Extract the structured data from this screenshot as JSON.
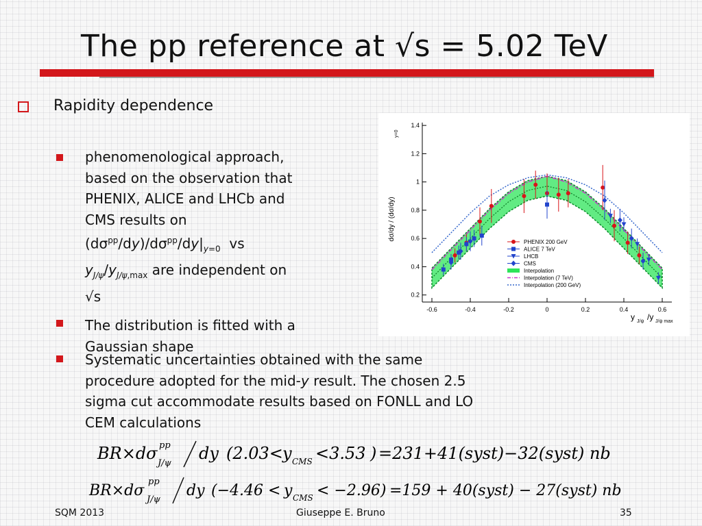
{
  "slide": {
    "title": "The pp reference at √s = 5.02 TeV",
    "bullet1": "Rapidity dependence",
    "sub1": {
      "line1": "phenomenological approach,",
      "line2": "based on the observation that",
      "line3": "PHENIX, ALICE and LHCb and",
      "line4": "CMS results on",
      "line5a": "(dσ",
      "line5b": "pp",
      "line5c": "/d",
      "line5d": "y",
      "line5e": ")/dσ",
      "line5f": "pp",
      "line5g": "/d",
      "line5h": "y",
      "line5i": "|",
      "line5j": "y",
      "line5k": "=0",
      "line5l": "  vs",
      "line6a": "y",
      "line6b": "J/ψ",
      "line6c": "/",
      "line6d": "y",
      "line6e": "J/ψ",
      "line6f": ",max",
      "line6g": " are independent on",
      "line7": "√s"
    },
    "sub2": {
      "line1": "The distribution is fitted with a",
      "line2": "Gaussian shape"
    },
    "sub3": {
      "line1": "Systematic uncertainties obtained with the same",
      "line2a": "procedure adopted for the mid-",
      "line2b": "y",
      "line2c": " result. The chosen 2.5",
      "line3": "sigma cut accommodate results based on FONLL and LO",
      "line4": "CEM calculations"
    },
    "eq1": "BR×dσ J/ψ pp /dy (2.03<y CMS <3.53) =231+41(syst)−32(syst) nb",
    "eq2": "BR×dσ J/ψ pp /dy (−4.46 < y CMS < −2.96) =159 + 40(syst) − 27(syst) nb",
    "eqs": {
      "e1": [
        "BR×dσ",
        "pp",
        "J/ψ",
        "dy",
        "(2.03<",
        "y",
        "CMS",
        "<3.53",
        ")",
        "=231+41(syst)−32(syst) nb"
      ],
      "e2": [
        "BR×dσ",
        "pp",
        "J/ψ",
        "dy",
        "(−4.46 <",
        "y",
        "CMS",
        "< −2.96)",
        "=159 + 40(syst) − 27(syst) nb"
      ]
    },
    "footer": {
      "left": "SQM 2013",
      "center": "Giuseppe E. Bruno",
      "right": "35"
    }
  },
  "colors": {
    "accent": "#d3171b",
    "phenix": "#d8141a",
    "alice": "#2244cc",
    "lhcb": "#2244cc",
    "cms": "#2244cc",
    "band": "#2ee45a",
    "interp": "#0a7a22",
    "interp7": "#cc33cc",
    "interp200": "#3366cc"
  },
  "chart_data": {
    "type": "scatter",
    "ylabel": "dσ/dy / (dσ/dy)",
    "ylabel_sub": "y=0",
    "xlabel_parts": [
      "y",
      "J/ψ",
      "/y",
      "J/ψ max"
    ],
    "xlim": [
      -0.65,
      0.65
    ],
    "ylim": [
      0.15,
      1.42
    ],
    "xticks": [
      -0.6,
      -0.4,
      -0.2,
      0,
      0.2,
      0.4,
      0.6
    ],
    "xticklabels": [
      "-0.6",
      "-0.4",
      "-0.2",
      "0",
      "0.2",
      "0.4",
      "0.6"
    ],
    "yticks": [
      0.2,
      0.4,
      0.6,
      0.8,
      1.0,
      1.2,
      1.4
    ],
    "yticklabels": [
      "0.2",
      "0.4",
      "0.6",
      "0.8",
      "1",
      "1.2",
      "1.4"
    ],
    "legend_position": "bottom-right",
    "series": [
      {
        "name": "PHENIX 200 GeV",
        "marker": "circle",
        "color": "#d8141a",
        "x": [
          -0.48,
          -0.42,
          -0.35,
          -0.29,
          -0.12,
          -0.06,
          0.0,
          0.06,
          0.11,
          0.29,
          0.35,
          0.42,
          0.48
        ],
        "y": [
          0.48,
          0.57,
          0.72,
          0.83,
          0.9,
          0.98,
          0.92,
          0.91,
          0.92,
          0.96,
          0.69,
          0.57,
          0.48
        ],
        "err": [
          0.05,
          0.06,
          0.1,
          0.12,
          0.12,
          0.1,
          0.14,
          0.12,
          0.1,
          0.16,
          0.11,
          0.08,
          0.06
        ]
      },
      {
        "name": "ALICE 7 TeV",
        "marker": "square",
        "color": "#2244cc",
        "x": [
          -0.54,
          -0.5,
          -0.46,
          -0.42,
          -0.38,
          -0.34,
          0.0
        ],
        "y": [
          0.38,
          0.45,
          0.5,
          0.56,
          0.6,
          0.62,
          0.84
        ],
        "err": [
          0.04,
          0.04,
          0.05,
          0.05,
          0.06,
          0.07,
          0.1
        ]
      },
      {
        "name": "LHCB",
        "marker": "triangle-down",
        "color": "#2244cc",
        "x": [
          0.33,
          0.4,
          0.47,
          0.53,
          0.58
        ],
        "y": [
          0.76,
          0.7,
          0.56,
          0.45,
          0.32
        ],
        "err": [
          0.05,
          0.05,
          0.04,
          0.04,
          0.04
        ]
      },
      {
        "name": "CMS",
        "marker": "diamond",
        "color": "#2244cc",
        "x": [
          -0.5,
          -0.45,
          -0.4,
          0.3,
          0.38,
          0.44,
          0.5
        ],
        "y": [
          0.43,
          0.51,
          0.58,
          0.87,
          0.73,
          0.6,
          0.44
        ],
        "err": [
          0.05,
          0.06,
          0.07,
          0.14,
          0.08,
          0.07,
          0.06
        ]
      },
      {
        "name": "Interpolation",
        "type": "band",
        "color": "#2ee45a",
        "x": [
          -0.6,
          -0.5,
          -0.4,
          -0.3,
          -0.2,
          -0.1,
          0.0,
          0.1,
          0.2,
          0.3,
          0.4,
          0.5,
          0.6
        ],
        "y": [
          0.32,
          0.46,
          0.6,
          0.74,
          0.86,
          0.94,
          0.97,
          0.94,
          0.86,
          0.74,
          0.6,
          0.46,
          0.32
        ],
        "band_half_width": 0.07
      },
      {
        "name": "Interpolation (7 TeV)",
        "type": "line",
        "style": "dash-dot",
        "color": "#cc33cc",
        "x": [
          -0.6,
          -0.5,
          -0.4,
          -0.3,
          -0.2,
          -0.1,
          0.0,
          0.1,
          0.2,
          0.3,
          0.4,
          0.5,
          0.6
        ],
        "y": [
          0.38,
          0.52,
          0.66,
          0.8,
          0.92,
          1.0,
          1.04,
          1.0,
          0.92,
          0.8,
          0.66,
          0.52,
          0.38
        ]
      },
      {
        "name": "Interpolation (200 GeV)",
        "type": "line",
        "style": "dotted",
        "color": "#3366cc",
        "x": [
          -0.6,
          -0.5,
          -0.4,
          -0.3,
          -0.2,
          -0.1,
          0.0,
          0.1,
          0.2,
          0.3,
          0.4,
          0.5,
          0.6
        ],
        "y": [
          0.5,
          0.64,
          0.78,
          0.9,
          0.98,
          1.03,
          1.05,
          1.03,
          0.98,
          0.9,
          0.78,
          0.64,
          0.5
        ]
      }
    ]
  }
}
